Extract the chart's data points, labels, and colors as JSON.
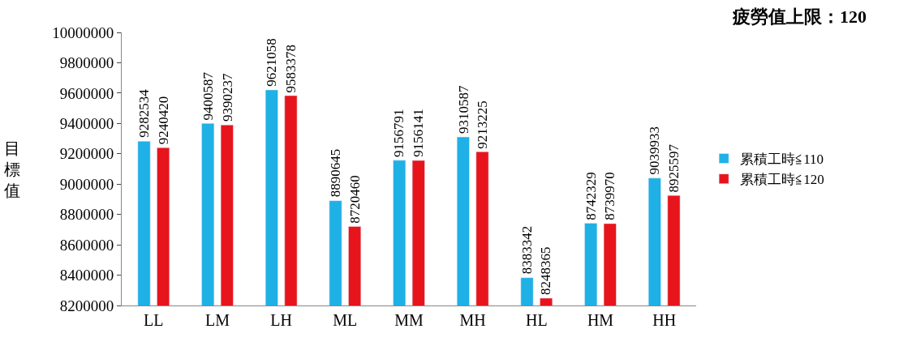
{
  "chart_data": {
    "type": "bar",
    "title": "疲勞值上限：120",
    "ylabel": "目標值",
    "categories": [
      "LL",
      "LM",
      "LH",
      "ML",
      "MM",
      "MH",
      "HL",
      "HM",
      "HH"
    ],
    "series": [
      {
        "name": "累積工時≦110",
        "color": "#1fb0e6",
        "values": [
          9282534,
          9400587,
          9621058,
          8890645,
          9156791,
          9310587,
          8383342,
          8742329,
          9039933
        ]
      },
      {
        "name": "累積工時≦120",
        "color": "#e8141c",
        "values": [
          9240420,
          9390237,
          9583378,
          8720460,
          9156141,
          9213225,
          8248365,
          8739970,
          8925597
        ]
      }
    ],
    "ylim": [
      8200000,
      10000000
    ],
    "yticks": [
      8200000,
      8400000,
      8600000,
      8800000,
      9000000,
      9200000,
      9400000,
      9600000,
      9800000,
      10000000
    ],
    "data_labels": true,
    "legend": "right"
  }
}
